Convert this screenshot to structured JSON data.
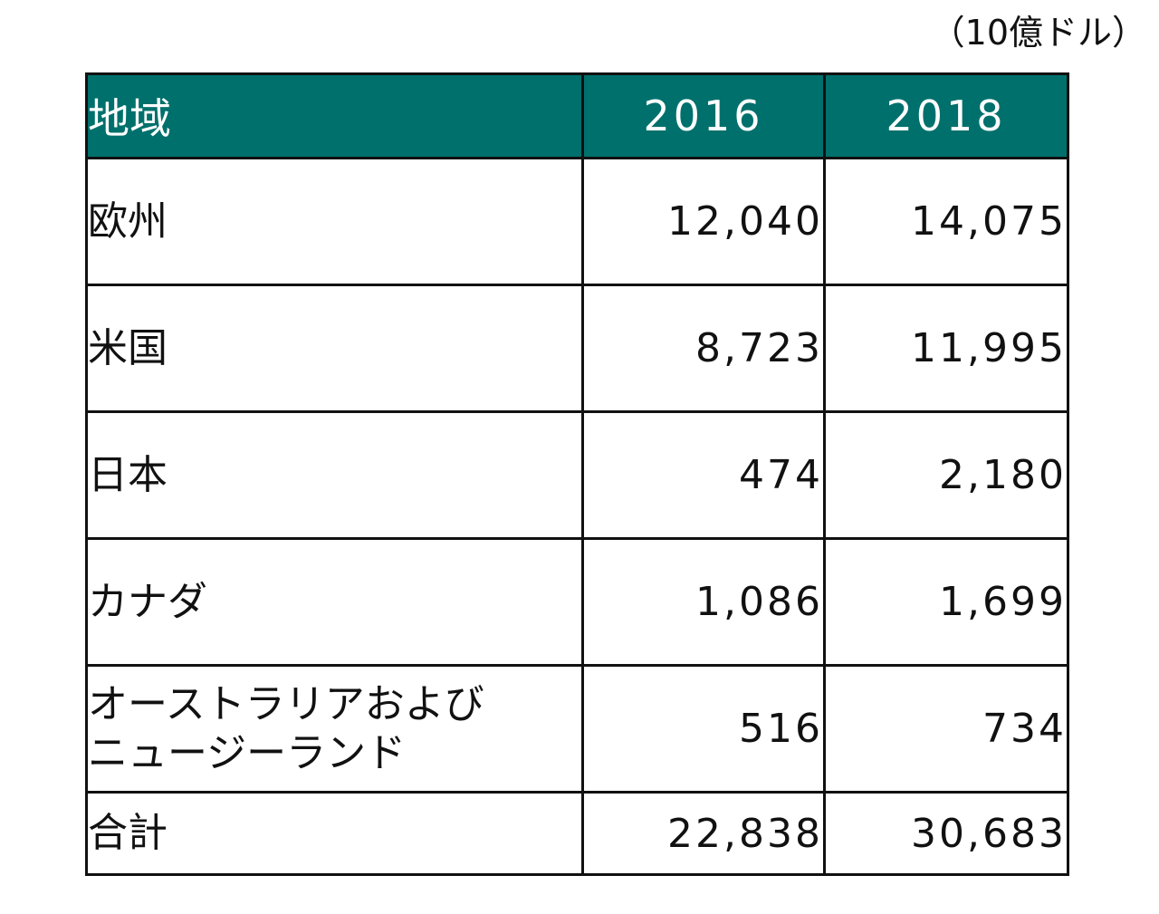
{
  "unit_note": "（10億ドル）",
  "table": {
    "headers": {
      "region": "地域",
      "year1": "2016",
      "year2": "2018"
    },
    "rows": [
      {
        "region_line1": "欧州",
        "region_line2": "",
        "y2016": "12,040",
        "y2018": "14,075"
      },
      {
        "region_line1": "米国",
        "region_line2": "",
        "y2016": "8,723",
        "y2018": "11,995"
      },
      {
        "region_line1": "日本",
        "region_line2": "",
        "y2016": "474",
        "y2018": "2,180"
      },
      {
        "region_line1": "カナダ",
        "region_line2": "",
        "y2016": "1,086",
        "y2018": "1,699"
      },
      {
        "region_line1": "オーストラリアおよび",
        "region_line2": "ニュージーランド",
        "y2016": "516",
        "y2018": "734"
      }
    ],
    "total": {
      "label": "合計",
      "y2016": "22,838",
      "y2018": "30,683"
    }
  },
  "colors": {
    "header_bg": "#00706c",
    "header_text": "#ffffff",
    "border": "#111111"
  }
}
